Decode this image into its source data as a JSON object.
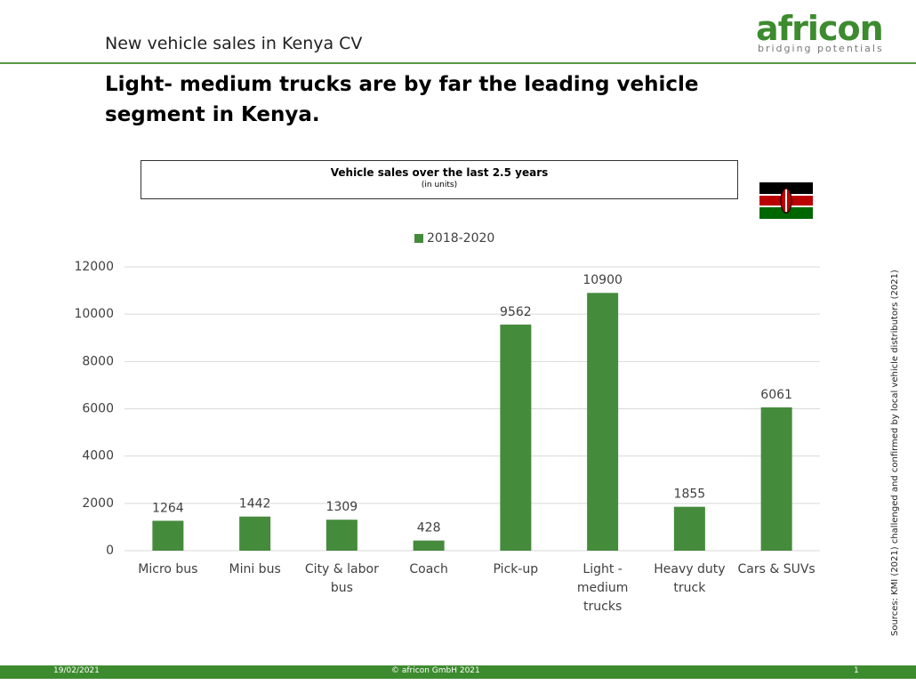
{
  "header": {
    "title": "New vehicle sales in Kenya CV",
    "logo": "africon",
    "tagline": "bridging potentials"
  },
  "headline": "Light- medium trucks are by far the leading vehicle segment in Kenya.",
  "chart_data": {
    "type": "bar",
    "title": "Vehicle sales over the last 2.5 years",
    "subtitle": "(in units)",
    "categories": [
      "Micro bus",
      "Mini bus",
      "City & labor bus",
      "Coach",
      "Pick-up",
      "Light - medium trucks",
      "Heavy duty truck",
      "Cars & SUVs"
    ],
    "series": [
      {
        "name": "2018-2020",
        "color": "#458b3c",
        "values": [
          1264,
          1442,
          1309,
          428,
          9562,
          10900,
          1855,
          6061
        ]
      }
    ],
    "ylim": [
      0,
      12000
    ],
    "yticks": [
      0,
      2000,
      4000,
      6000,
      8000,
      10000,
      12000
    ],
    "grid": true,
    "legend": "top"
  },
  "source": "Sources: KMI (2021) challenged and confirmed by local vehicle distributors (2021)",
  "footer": {
    "date": "19/02/2021",
    "copyright": "© africon GmbH 2021",
    "page": "1"
  }
}
